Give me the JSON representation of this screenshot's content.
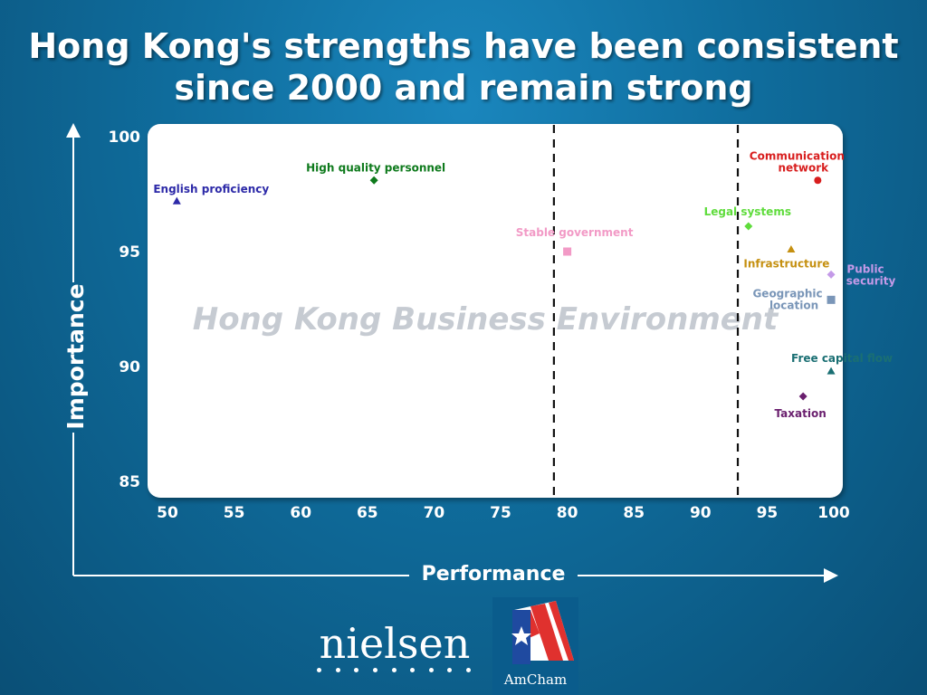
{
  "slide": {
    "title_line1": "Hong Kong's strengths have been consistent",
    "title_line2": "since 2000 and remain strong",
    "watermark": "Hong Kong Business Environment",
    "logos": {
      "nielsen": "nielsen",
      "amcham": "AmCham"
    }
  },
  "chart_data": {
    "type": "scatter",
    "xlabel": "Performance",
    "ylabel": "Importance",
    "xlim": [
      50,
      100
    ],
    "ylim": [
      85,
      100
    ],
    "x_ticks": [
      50,
      55,
      60,
      65,
      70,
      75,
      80,
      85,
      90,
      95,
      100
    ],
    "y_ticks": [
      85,
      90,
      95,
      100
    ],
    "grid": false,
    "reference_lines_x": [
      79,
      92.8
    ],
    "points": [
      {
        "label": "English proficiency",
        "x": 50.7,
        "y": 97.2,
        "marker": "triangle",
        "color": "#2d2aa8"
      },
      {
        "label": "High quality personnel",
        "x": 65.5,
        "y": 98.1,
        "marker": "diamond",
        "color": "#0e7a1c"
      },
      {
        "label": "Stable government",
        "x": 80,
        "y": 95,
        "marker": "square",
        "color": "#f29ac6"
      },
      {
        "label": "Legal systems",
        "x": 93.6,
        "y": 96.1,
        "marker": "diamond",
        "color": "#5fdc3c"
      },
      {
        "label": "Communication network",
        "x": 98.8,
        "y": 98.1,
        "marker": "circle",
        "color": "#d81e1e"
      },
      {
        "label": "Infrastructure",
        "x": 96.8,
        "y": 95.1,
        "marker": "triangle",
        "color": "#c59010"
      },
      {
        "label": "Public security",
        "x": 99.8,
        "y": 94,
        "marker": "diamond",
        "color": "#c49ae8"
      },
      {
        "label": "Geographic location",
        "x": 99.8,
        "y": 92.9,
        "marker": "square",
        "color": "#7a96b8"
      },
      {
        "label": "Free capital flow",
        "x": 99.8,
        "y": 89.8,
        "marker": "triangle",
        "color": "#1a6f73"
      },
      {
        "label": "Taxation",
        "x": 97.7,
        "y": 88.7,
        "marker": "diamond",
        "color": "#6a1f6e"
      }
    ]
  }
}
